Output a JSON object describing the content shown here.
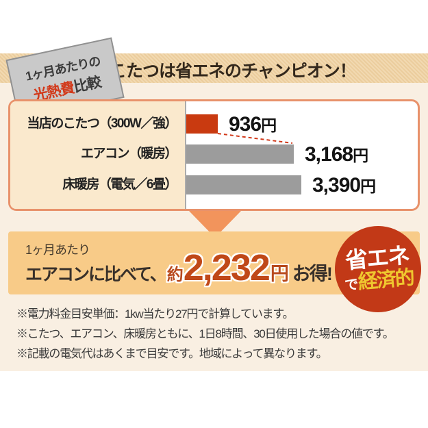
{
  "colors": {
    "accent_red": "#C93A10",
    "bar_gray": "#9C9C9C",
    "band_orange": "#F8CB88",
    "circle_red": "#C23917",
    "accent_yellow": "#EFC72F",
    "header_tan": "#EFD5AB",
    "box_border_orange": "#E8926B",
    "cream_bg": "#F9EFE2",
    "label_bg": "#FAE9CD",
    "triangle_orange": "#F2945C",
    "savings_red": "#C04818",
    "dash_line_red": "#D2391A"
  },
  "ribbon": {
    "line1": "1ヶ月あたりの",
    "line2_accent": "光熱費",
    "line2_rest": "比較"
  },
  "header": {
    "title": "こたつは省エネのチャンピオン！"
  },
  "chart_data": {
    "type": "bar",
    "orientation": "horizontal",
    "title": "1ヶ月あたりの光熱費比較",
    "categories": [
      "当店のこたつ（300W／強）",
      "エアコン（暖房）",
      "床暖房（電気／6畳）"
    ],
    "values": [
      936,
      3168,
      3390
    ],
    "value_texts": [
      "936",
      "3,168",
      "3,390"
    ],
    "unit": "円",
    "xlim": [
      0,
      3390
    ],
    "bar_colors": [
      "#C93A10",
      "#9C9C9C",
      "#9C9C9C"
    ],
    "legend": "none",
    "grid": "off"
  },
  "savings": {
    "prefix": "1ヶ月あたり",
    "lead": "エアコンに比べて、",
    "approx": "約",
    "amount": "2,232",
    "unit": "円",
    "suffix": "お得!"
  },
  "eco_badge": {
    "line1": "省エネ",
    "line2_small": "で",
    "line2_accent": "経済的"
  },
  "notes": [
    "※電力料金目安単価：1kw当たり27円で計算しています。",
    "※こたつ、エアコン、床暖房ともに、1日8時間、30日使用した場合の値です。",
    "※記載の電気代はあくまで目安です。地域によって異なります。"
  ]
}
